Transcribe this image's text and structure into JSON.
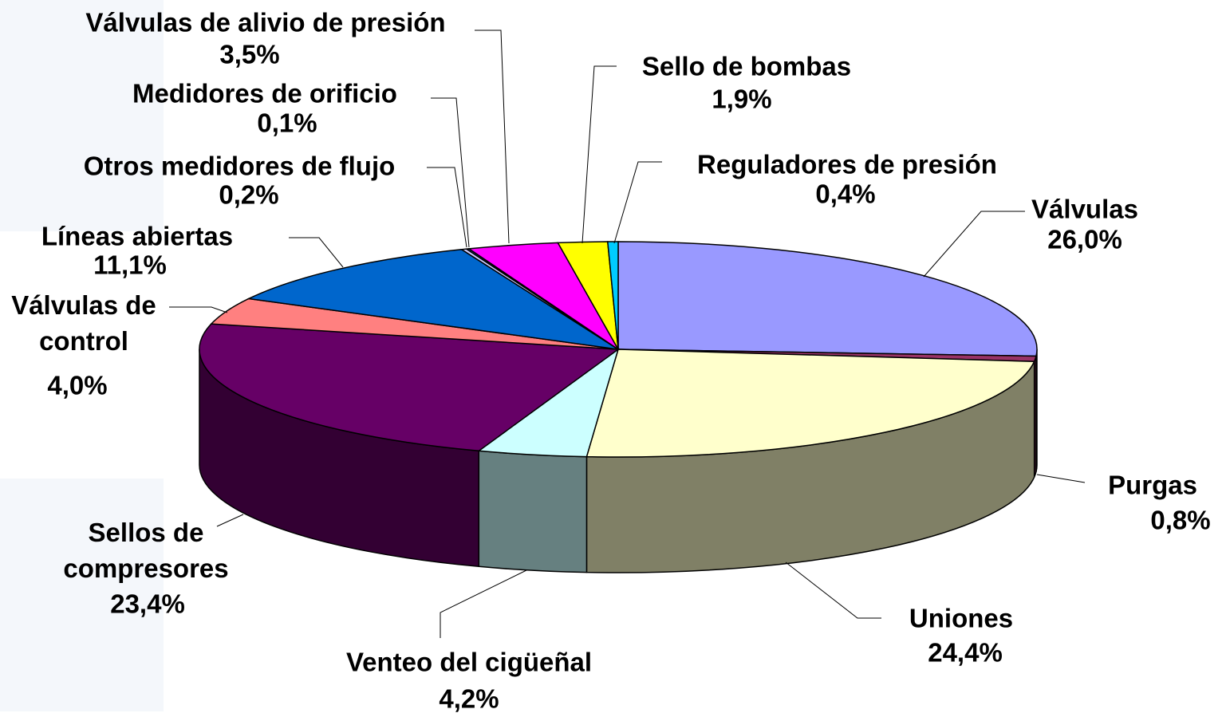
{
  "chart_data": {
    "type": "pie3d",
    "categories": [
      "Válvulas",
      "Purgas",
      "Uniones",
      "Venteo del cigüeñal",
      "Sellos de compresores",
      "Válvulas de control",
      "Líneas abiertas",
      "Otros medidores de flujo",
      "Medidores de orificio",
      "Válvulas de alivio de presión",
      "Sello de bombas",
      "Reguladores de presión"
    ],
    "values": [
      26.0,
      0.8,
      24.4,
      4.2,
      23.4,
      4.0,
      11.1,
      0.2,
      0.1,
      3.5,
      1.9,
      0.4
    ],
    "value_labels": [
      "26,0%",
      "0,8%",
      "24,4%",
      "4,2%",
      "23,4%",
      "4,0%",
      "11,1%",
      "0,2%",
      "0,1%",
      "3,5%",
      "1,9%",
      "0,4%"
    ],
    "colors": [
      "#9999ff",
      "#993366",
      "#ffffcc",
      "#ccffff",
      "#660066",
      "#ff8080",
      "#0066cc",
      "#ccccff",
      "#3366ff",
      "#ff00ff",
      "#ffff00",
      "#00ccff"
    ]
  }
}
